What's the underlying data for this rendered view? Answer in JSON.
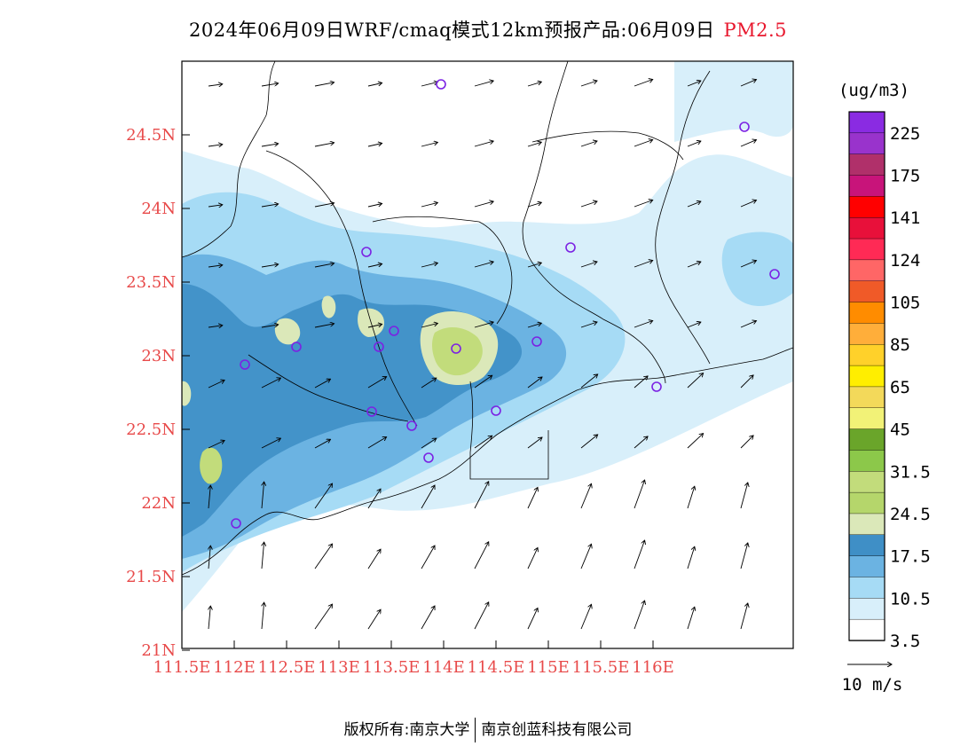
{
  "title": {
    "main": "2024年06月09日WRF/cmaq模式12km预报产品:06月09日",
    "variable": "PM2.5"
  },
  "map": {
    "lat_labels": [
      "24.5N",
      "24N",
      "23.5N",
      "23N",
      "22.5N",
      "22N",
      "21.5N",
      "21N"
    ],
    "lon_labels": [
      "111.5E",
      "112E",
      "112.5E",
      "113E",
      "113.5E",
      "114E",
      "114.5E",
      "115E",
      "115.5E",
      "116E"
    ],
    "colors": {
      "c0": "#ffffff",
      "c1": "#d8effa",
      "c2": "#a6dbf5",
      "c3": "#6bb3e2",
      "c4": "#3f8fc6",
      "c5": "#dbe8b9",
      "c6": "#c2dc7b",
      "outline": "#000000",
      "station": "#7b22e3",
      "label": "#e84a4a"
    }
  },
  "colorbar": {
    "unit": "(ug/m3)",
    "colors": [
      "#8a2be2",
      "#9933cc",
      "#b0306a",
      "#c8147a",
      "#ff0000",
      "#e8103a",
      "#ff2a55",
      "#ff6666",
      "#f05a28",
      "#ff8c00",
      "#ffae3a",
      "#ffd12a",
      "#ffee00",
      "#f3d95a",
      "#f2f277",
      "#6aa52a",
      "#8cc84a",
      "#c2dc7b",
      "#b5d66b",
      "#dbe8b9",
      "#3f8fc6",
      "#6bb3e2",
      "#a6dbf5",
      "#d8effa",
      "#ffffff"
    ],
    "labels": [
      "225",
      "175",
      "141",
      "124",
      "105",
      "85",
      "65",
      "45",
      "31.5",
      "24.5",
      "17.5",
      "10.5",
      "3.5"
    ]
  },
  "wind_legend": {
    "label": "10 m/s"
  },
  "footer": {
    "left": "版权所有:南京大学",
    "right": "南京创蓝科技有限公司"
  }
}
